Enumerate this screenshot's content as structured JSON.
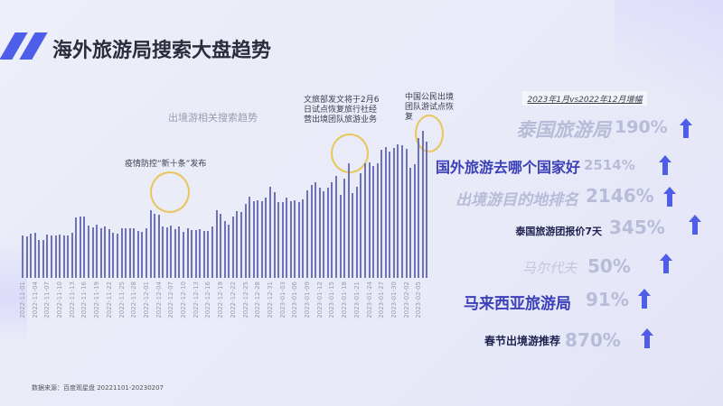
{
  "header": {
    "title": "海外旅游局搜索大盘趋势"
  },
  "chart_data": {
    "type": "bar",
    "title": "出境游相关搜索趋势",
    "xlabel": "",
    "ylabel": "",
    "grid": false,
    "x_tick_labels": [
      "2022-11-01",
      "2022-11-04",
      "2022-11-07",
      "2022-11-10",
      "2022-11-13",
      "2022-11-16",
      "2022-11-19",
      "2022-11-22",
      "2022-11-25",
      "2022-11-28",
      "2022-12-01",
      "2022-12-04",
      "2022-12-07",
      "2022-12-10",
      "2022-12-13",
      "2022-12-16",
      "2022-12-19",
      "2022-12-22",
      "2022-12-25",
      "2022-12-28",
      "2022-12-31",
      "2023-01-03",
      "2023-01-06",
      "2023-01-09",
      "2023-01-12",
      "2023-01-15",
      "2023-01-18",
      "2023-01-21",
      "2023-01-24",
      "2023-01-27",
      "2023-01-30",
      "2023-02-02",
      "2023-02-05"
    ],
    "date_range": [
      "2022-11-01",
      "2023-02-07"
    ],
    "values": [
      47,
      46,
      49,
      50,
      42,
      42,
      48,
      47,
      47,
      48,
      47,
      47,
      50,
      67,
      68,
      68,
      58,
      56,
      59,
      55,
      57,
      54,
      50,
      49,
      55,
      55,
      55,
      55,
      52,
      51,
      55,
      75,
      71,
      70,
      57,
      56,
      58,
      54,
      57,
      51,
      55,
      53,
      53,
      54,
      52,
      52,
      57,
      75,
      71,
      63,
      59,
      68,
      74,
      73,
      82,
      90,
      85,
      86,
      85,
      89,
      101,
      95,
      84,
      84,
      89,
      85,
      86,
      84,
      87,
      97,
      103,
      106,
      100,
      96,
      100,
      106,
      113,
      92,
      110,
      127,
      94,
      101,
      116,
      127,
      128,
      124,
      127,
      142,
      145,
      140,
      144,
      148,
      147,
      143,
      122,
      126,
      155,
      163,
      151
    ],
    "ylim": [
      0,
      178
    ],
    "annotations": [
      {
        "text": "疫情防控“新十条”发布",
        "near": "2022-12-07"
      },
      {
        "text": "文旅部发文将于2月6日试点恢复旅行社经营出境团队旅游业务",
        "near": "2023-01-18"
      },
      {
        "text": "中国公民出境团队游试点恢复",
        "near": "2023-02-06"
      }
    ]
  },
  "annotations": {
    "a1": "疫情防控“新十条”发布",
    "a2_l1": "文旅部发文将于2月6",
    "a2_l2": "日试点恢复旅行社经",
    "a2_l3": "营出境团队旅游业务",
    "a3_l1": "中国公民出境",
    "a3_l2": "团队游试点恢",
    "a3_l3": "复"
  },
  "growth": {
    "period_label": "2023年1月vs2022年12月增幅",
    "items": [
      {
        "keyword": "泰国旅游局",
        "pct": "190%"
      },
      {
        "keyword": "国外旅游去哪个国家好",
        "pct": "2514%"
      },
      {
        "keyword": "出境游目的地排名",
        "pct": "2146%"
      },
      {
        "keyword": "泰国旅游团报价7天",
        "pct": "345%"
      },
      {
        "keyword": "马尔代夫",
        "pct": "50%"
      },
      {
        "keyword": "马来西亚旅游局",
        "pct": "91%"
      },
      {
        "keyword": "春节出境游推荐",
        "pct": "870%"
      }
    ],
    "arrow_icon": "up-arrow-icon"
  },
  "footer": {
    "source": "数据来源：百度观星盘 20221101-20230207"
  },
  "colors": {
    "accent": "#4f5ee8",
    "bar": "#6f73b6",
    "highlight_circle": "#e8c65a",
    "pct_text": "#b8bcd8",
    "keyword_dark": "#1e2150",
    "keyword_blue": "#3c40b8",
    "keyword_faded": "#b9bcd8"
  }
}
